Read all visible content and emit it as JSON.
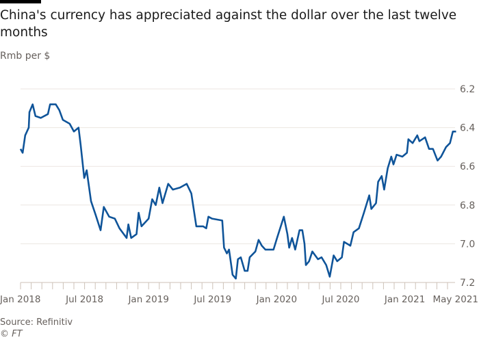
{
  "header": {
    "title": "China's currency has appreciated against the dollar over the last twelve months",
    "subtitle": "Rmb per $"
  },
  "footer": {
    "source": "Source: Refinitiv",
    "credit": "© FT"
  },
  "colors": {
    "line": "#0f5499",
    "grid": "#ebe6e1",
    "text": "#66605c"
  },
  "chart_data": {
    "type": "line",
    "title": "China's currency has appreciated against the dollar over the last twelve months",
    "ylabel": "Rmb per $",
    "ylim": [
      6.2,
      7.2
    ],
    "y_inverted": true,
    "y_axis_side": "right",
    "grid": true,
    "yticks": [
      "6.2",
      "6.4",
      "6.6",
      "6.8",
      "7.0",
      "7.2"
    ],
    "xticks": [
      {
        "date": "2018-01-01",
        "label": "Jan 2018"
      },
      {
        "date": "2018-07-01",
        "label": "Jul 2018"
      },
      {
        "date": "2019-01-01",
        "label": "Jan 2019"
      },
      {
        "date": "2019-07-01",
        "label": "Jul 2019"
      },
      {
        "date": "2020-01-01",
        "label": "Jan 2020"
      },
      {
        "date": "2020-07-01",
        "label": "Jul 2020"
      },
      {
        "date": "2021-01-01",
        "label": "Jan 2021"
      },
      {
        "date": "2021-05-01",
        "label": "May 2021"
      }
    ],
    "series": [
      {
        "x": [
          "2018-01-01",
          "2018-01-07",
          "2018-01-14",
          "2018-01-24",
          "2018-01-26",
          "2018-02-05",
          "2018-02-13",
          "2018-02-28",
          "2018-03-18",
          "2018-03-24",
          "2018-04-10",
          "2018-04-20",
          "2018-04-30",
          "2018-05-19",
          "2018-06-01",
          "2018-06-14",
          "2018-06-20",
          "2018-06-30",
          "2018-07-07",
          "2018-07-19",
          "2018-08-02",
          "2018-08-16",
          "2018-08-25",
          "2018-09-10",
          "2018-09-26",
          "2018-10-09",
          "2018-10-29",
          "2018-11-04",
          "2018-11-12",
          "2018-11-27",
          "2018-12-03",
          "2018-12-11",
          "2018-12-31",
          "2019-01-11",
          "2019-01-21",
          "2019-02-01",
          "2019-02-10",
          "2019-02-26",
          "2019-03-09",
          "2019-03-29",
          "2019-04-18",
          "2019-05-01",
          "2019-05-15",
          "2019-06-04",
          "2019-06-13",
          "2019-06-19",
          "2019-06-29",
          "2019-07-28",
          "2019-08-03",
          "2019-08-11",
          "2019-08-17",
          "2019-08-27",
          "2019-09-06",
          "2019-09-12",
          "2019-09-20",
          "2019-10-01",
          "2019-10-09",
          "2019-10-15",
          "2019-10-31",
          "2019-11-10",
          "2019-11-19",
          "2019-11-29",
          "2019-12-22",
          "2020-01-02",
          "2020-01-21",
          "2020-02-01",
          "2020-02-06",
          "2020-02-14",
          "2020-02-23",
          "2020-03-05",
          "2020-03-13",
          "2020-03-19",
          "2020-03-23",
          "2020-04-02",
          "2020-04-11",
          "2020-04-27",
          "2020-05-07",
          "2020-05-20",
          "2020-05-30",
          "2020-06-11",
          "2020-06-21",
          "2020-07-04",
          "2020-07-10",
          "2020-07-28",
          "2020-08-07",
          "2020-08-22",
          "2020-09-06",
          "2020-09-21",
          "2020-09-27",
          "2020-10-10",
          "2020-10-16",
          "2020-10-26",
          "2020-11-03",
          "2020-11-13",
          "2020-11-23",
          "2020-11-29",
          "2020-12-08",
          "2020-12-24",
          "2021-01-07",
          "2021-01-11",
          "2021-01-23",
          "2021-02-06",
          "2021-02-12",
          "2021-02-28",
          "2021-03-09",
          "2021-03-20",
          "2021-04-03",
          "2021-04-13",
          "2021-04-27",
          "2021-05-08",
          "2021-05-16",
          "2021-05-25"
        ],
        "y": [
          6.51,
          6.53,
          6.44,
          6.4,
          6.32,
          6.28,
          6.34,
          6.35,
          6.33,
          6.28,
          6.28,
          6.31,
          6.36,
          6.38,
          6.42,
          6.4,
          6.49,
          6.66,
          6.62,
          6.78,
          6.85,
          6.93,
          6.81,
          6.86,
          6.87,
          6.92,
          6.97,
          6.9,
          6.97,
          6.95,
          6.84,
          6.91,
          6.87,
          6.77,
          6.8,
          6.71,
          6.79,
          6.69,
          6.72,
          6.71,
          6.69,
          6.74,
          6.91,
          6.91,
          6.92,
          6.86,
          6.87,
          6.88,
          7.02,
          7.05,
          7.03,
          7.16,
          7.18,
          7.08,
          7.07,
          7.14,
          7.14,
          7.07,
          7.04,
          6.98,
          7.01,
          7.03,
          7.03,
          6.97,
          6.86,
          6.95,
          7.02,
          6.97,
          7.03,
          6.93,
          6.93,
          7.0,
          7.11,
          7.09,
          7.04,
          7.08,
          7.07,
          7.11,
          7.17,
          7.06,
          7.09,
          7.07,
          6.99,
          7.01,
          6.94,
          6.92,
          6.84,
          6.75,
          6.82,
          6.79,
          6.68,
          6.65,
          6.72,
          6.61,
          6.55,
          6.59,
          6.54,
          6.55,
          6.53,
          6.46,
          6.48,
          6.44,
          6.47,
          6.45,
          6.51,
          6.51,
          6.57,
          6.55,
          6.5,
          6.48,
          6.42,
          6.42
        ]
      }
    ]
  }
}
